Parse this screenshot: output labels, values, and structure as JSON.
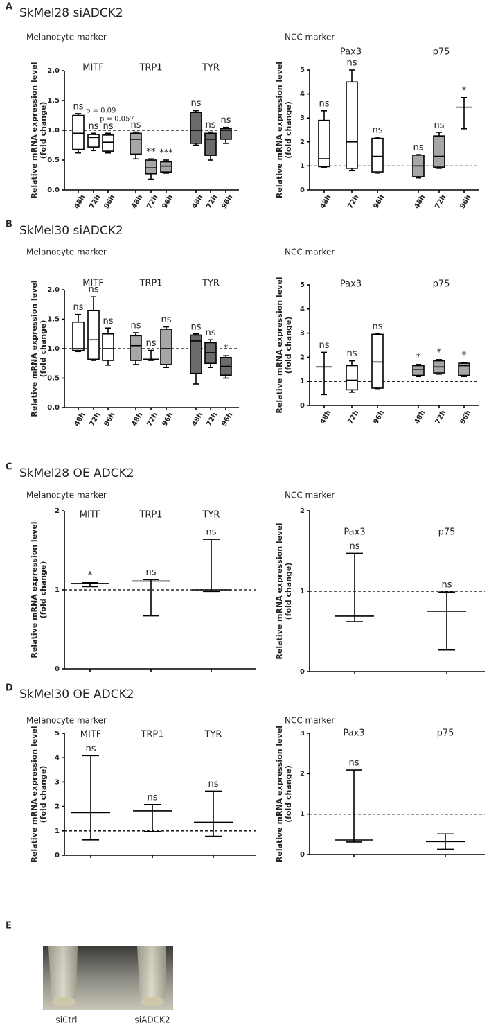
{
  "panels": [
    {
      "label": "A",
      "title": "SkMel28 siADCK2"
    },
    {
      "label": "B",
      "title": "SkMel30 siADCK2"
    },
    {
      "label": "C",
      "title": "SkMel28 OE ADCK2"
    },
    {
      "label": "D",
      "title": "SkMel30 OE ADCK2"
    },
    {
      "label": "E"
    }
  ],
  "photo": {
    "labels": [
      "siCtrl",
      "siADCK2"
    ]
  },
  "chart_data": [
    {
      "type": "box",
      "subtitle": "Melanocyte marker",
      "ylabel": [
        "Relative mRNA expression level",
        "(fold change)"
      ],
      "ylim": [
        0,
        2
      ],
      "yticks": [
        {
          "value": 0,
          "label": "0.0"
        },
        0.5,
        {
          "value": 1,
          "label": "1.0"
        },
        1.5,
        {
          "value": 2,
          "label": "2.0"
        }
      ],
      "refline": 1,
      "notes": [
        "p = 0.09",
        "p = 0.057"
      ],
      "groups": [
        {
          "name": "MITF",
          "color": "#ffffff",
          "items": [
            {
              "x": "48h",
              "min": 0.62,
              "q1": 0.68,
              "median": 0.95,
              "q3": 1.25,
              "max": 1.28,
              "label": "ns"
            },
            {
              "x": "72h",
              "min": 0.66,
              "q1": 0.72,
              "median": 0.88,
              "q3": 0.93,
              "max": 0.95,
              "label": "ns"
            },
            {
              "x": "96h",
              "min": 0.62,
              "q1": 0.65,
              "median": 0.8,
              "q3": 0.92,
              "max": 0.95,
              "label": "ns"
            }
          ]
        },
        {
          "name": "TRP1",
          "color": "#a6a6a6",
          "items": [
            {
              "x": "48h",
              "min": 0.52,
              "q1": 0.6,
              "median": 0.85,
              "q3": 0.95,
              "max": 0.97,
              "label": "ns"
            },
            {
              "x": "72h",
              "min": 0.18,
              "q1": 0.27,
              "median": 0.37,
              "q3": 0.5,
              "max": 0.52,
              "label": "**"
            },
            {
              "x": "96h",
              "min": 0.28,
              "q1": 0.3,
              "median": 0.4,
              "q3": 0.47,
              "max": 0.5,
              "label": "***"
            }
          ]
        },
        {
          "name": "TYR",
          "color": "#6b6b6b",
          "items": [
            {
              "x": "48h",
              "min": 0.75,
              "q1": 0.78,
              "median": 1.0,
              "q3": 1.3,
              "max": 1.33,
              "label": "ns"
            },
            {
              "x": "72h",
              "min": 0.5,
              "q1": 0.58,
              "median": 0.85,
              "q3": 0.95,
              "max": 0.97,
              "label": "ns"
            },
            {
              "x": "96h",
              "min": 0.78,
              "q1": 0.85,
              "median": 1.0,
              "q3": 1.03,
              "max": 1.05,
              "label": "ns"
            }
          ]
        }
      ]
    },
    {
      "type": "box",
      "subtitle": "NCC marker",
      "ylabel": [
        "Relative mRNA expression level",
        "(fold change)"
      ],
      "ylim": [
        0,
        5
      ],
      "yticks": [
        0,
        1,
        2,
        3,
        4,
        5
      ],
      "refline": 1,
      "groups": [
        {
          "name": "Pax3",
          "color": "#ffffff",
          "items": [
            {
              "x": "48h",
              "min": 0.95,
              "q1": 0.97,
              "median": 1.3,
              "q3": 2.9,
              "max": 3.3,
              "label": "ns"
            },
            {
              "x": "72h",
              "min": 0.8,
              "q1": 0.9,
              "median": 2.0,
              "q3": 4.5,
              "max": 5.0,
              "label": "ns"
            },
            {
              "x": "96h",
              "min": 0.7,
              "q1": 0.75,
              "median": 1.4,
              "q3": 2.15,
              "max": 2.2,
              "label": "ns"
            }
          ]
        },
        {
          "name": "p75",
          "color": "#a6a6a6",
          "items": [
            {
              "x": "48h",
              "min": 0.5,
              "q1": 0.55,
              "median": 1.0,
              "q3": 1.45,
              "max": 1.47,
              "label": "ns"
            },
            {
              "x": "72h",
              "min": 0.9,
              "q1": 0.95,
              "median": 1.4,
              "q3": 2.25,
              "max": 2.4,
              "label": "ns"
            },
            {
              "x": "96h",
              "min": 2.55,
              "median": 3.45,
              "max": 3.85,
              "label": "*"
            }
          ]
        }
      ]
    },
    {
      "type": "box",
      "subtitle": "Melanocyte marker",
      "ylabel": [
        "Relative mRNA expression level",
        "(fold change)"
      ],
      "ylim": [
        0,
        2
      ],
      "yticks": [
        {
          "value": 0,
          "label": "0.0"
        },
        0.5,
        {
          "value": 1,
          "label": "1.0"
        },
        1.5,
        {
          "value": 2,
          "label": "2.0"
        }
      ],
      "refline": 1,
      "groups": [
        {
          "name": "MITF",
          "color": "#ffffff",
          "items": [
            {
              "x": "48h",
              "min": 0.95,
              "q1": 0.97,
              "median": 1.0,
              "q3": 1.45,
              "max": 1.58,
              "label": "ns"
            },
            {
              "x": "72h",
              "min": 0.8,
              "q1": 0.82,
              "median": 1.15,
              "q3": 1.65,
              "max": 1.88,
              "label": "ns"
            },
            {
              "x": "96h",
              "min": 0.72,
              "q1": 0.8,
              "median": 1.0,
              "q3": 1.25,
              "max": 1.35,
              "label": "ns"
            }
          ]
        },
        {
          "name": "TRP1",
          "color": "#a6a6a6",
          "items": [
            {
              "x": "48h",
              "min": 0.73,
              "q1": 0.8,
              "median": 1.05,
              "q3": 1.22,
              "max": 1.27,
              "label": "ns"
            },
            {
              "x": "72h",
              "min": 0.8,
              "median": 0.82,
              "max": 0.97,
              "label": "ns"
            },
            {
              "x": "96h",
              "min": 0.68,
              "q1": 0.73,
              "median": 1.0,
              "q3": 1.33,
              "max": 1.37,
              "label": "ns"
            }
          ]
        },
        {
          "name": "TYR",
          "color": "#6b6b6b",
          "items": [
            {
              "x": "48h",
              "min": 0.4,
              "q1": 0.58,
              "median": 1.13,
              "q3": 1.23,
              "max": 1.25,
              "label": "ns"
            },
            {
              "x": "72h",
              "min": 0.68,
              "q1": 0.75,
              "median": 0.93,
              "q3": 1.1,
              "max": 1.15,
              "label": "ns"
            },
            {
              "x": "96h",
              "min": 0.5,
              "q1": 0.55,
              "median": 0.7,
              "q3": 0.85,
              "max": 0.88,
              "label": "*"
            }
          ]
        }
      ]
    },
    {
      "type": "box",
      "subtitle": "NCC marker",
      "ylabel": [
        "Relative mRNA expression level",
        "(fold change)"
      ],
      "ylim": [
        0,
        5
      ],
      "yticks": [
        0,
        1,
        2,
        3,
        4,
        5
      ],
      "refline": 1,
      "groups": [
        {
          "name": "Pax3",
          "color": "#ffffff",
          "items": [
            {
              "x": "48h",
              "min": 0.45,
              "median": 1.6,
              "max": 2.2,
              "label": "ns"
            },
            {
              "x": "72h",
              "min": 0.55,
              "q1": 0.65,
              "median": 1.05,
              "q3": 1.65,
              "max": 1.85,
              "label": "ns"
            },
            {
              "x": "96h",
              "min": 0.7,
              "q1": 0.72,
              "median": 1.8,
              "q3": 2.95,
              "max": 2.98,
              "label": "ns"
            }
          ]
        },
        {
          "name": "p75",
          "color": "#a6a6a6",
          "items": [
            {
              "x": "48h",
              "min": 1.2,
              "q1": 1.25,
              "median": 1.5,
              "q3": 1.65,
              "max": 1.7,
              "label": "*"
            },
            {
              "x": "72h",
              "min": 1.3,
              "q1": 1.35,
              "median": 1.6,
              "q3": 1.85,
              "max": 1.9,
              "label": "*"
            },
            {
              "x": "96h",
              "min": 1.2,
              "q1": 1.25,
              "median": 1.65,
              "q3": 1.75,
              "max": 1.78,
              "label": "*"
            }
          ]
        }
      ]
    },
    {
      "type": "range",
      "subtitle": "Melanocyte marker",
      "ylabel": [
        "Relative mRNA expression level",
        "(fold change)"
      ],
      "ylim": [
        0,
        2
      ],
      "yticks": [
        0,
        1,
        2
      ],
      "refline": 1,
      "groups": [
        {
          "name": "MITF",
          "items": [
            {
              "min": 1.04,
              "mean": 1.08,
              "max": 1.09,
              "label": "*"
            }
          ]
        },
        {
          "name": "TRP1",
          "items": [
            {
              "min": 0.67,
              "mean": 1.11,
              "max": 1.13,
              "label": "ns"
            }
          ]
        },
        {
          "name": "TYR",
          "items": [
            {
              "min": 0.98,
              "mean": 1.0,
              "max": 1.64,
              "label": "ns"
            }
          ]
        }
      ]
    },
    {
      "type": "range",
      "subtitle": "NCC marker",
      "ylabel": [
        "Relative mRNA expression level",
        "(fold change)"
      ],
      "ylim": [
        0,
        2
      ],
      "yticks": [
        0,
        1,
        2
      ],
      "refline": 1,
      "groups": [
        {
          "name": "Pax3",
          "items": [
            {
              "min": 0.62,
              "mean": 0.69,
              "max": 1.47,
              "label": "ns"
            }
          ]
        },
        {
          "name": "p75",
          "items": [
            {
              "min": 0.27,
              "mean": 0.75,
              "max": 0.99,
              "label": "ns"
            }
          ]
        }
      ]
    },
    {
      "type": "range",
      "subtitle": "Melanocyte marker",
      "ylabel": [
        "Relative mRNA expression level",
        "(fold change)"
      ],
      "ylim": [
        0,
        5
      ],
      "yticks": [
        0,
        1,
        2,
        3,
        4,
        5
      ],
      "refline": 1,
      "groups": [
        {
          "name": "MITF",
          "items": [
            {
              "min": 0.63,
              "mean": 1.75,
              "max": 4.08,
              "label": "ns"
            }
          ]
        },
        {
          "name": "TRP1",
          "items": [
            {
              "min": 0.97,
              "mean": 1.82,
              "max": 2.08,
              "label": "ns"
            }
          ]
        },
        {
          "name": "TYR",
          "items": [
            {
              "min": 0.78,
              "mean": 1.35,
              "max": 2.63,
              "label": "ns"
            }
          ]
        }
      ]
    },
    {
      "type": "range",
      "subtitle": "NCC marker",
      "ylabel": [
        "Relative mRNA expression level",
        "(fold change)"
      ],
      "ylim": [
        0,
        3
      ],
      "yticks": [
        0,
        1,
        2,
        3
      ],
      "refline": 1,
      "groups": [
        {
          "name": "Pax3",
          "items": [
            {
              "min": 0.31,
              "mean": 0.36,
              "max": 2.09,
              "label": "ns"
            }
          ]
        },
        {
          "name": "p75",
          "items": [
            {
              "min": 0.13,
              "mean": 0.32,
              "max": 0.51
            }
          ]
        }
      ]
    }
  ]
}
